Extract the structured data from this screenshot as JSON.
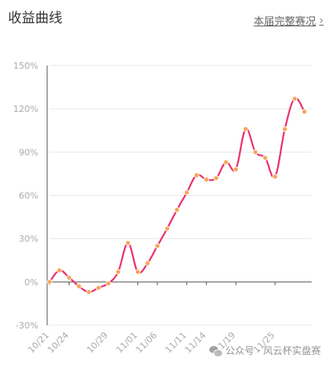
{
  "header": {
    "title": "收益曲线",
    "link_label": "本届完整赛况",
    "chevron": "›"
  },
  "watermark": {
    "text": "公众号 · 风云杯实盘赛",
    "icon": "wechat-icon"
  },
  "colors": {
    "line": "#e8336f",
    "marker": "#f6a55a",
    "axis_text": "#aaaaaa",
    "grid": "#e9e9e9",
    "axis": "#555555"
  },
  "chart_data": {
    "type": "line",
    "title": "",
    "xlabel": "",
    "ylabel": "",
    "ylim": [
      -30,
      150
    ],
    "yticks": [
      -30,
      0,
      30,
      60,
      90,
      120,
      150
    ],
    "ytick_labels": [
      "-30%",
      "0%",
      "30%",
      "60%",
      "90%",
      "120%",
      "150%"
    ],
    "xtick_labels": [
      "10/21",
      "10/24",
      "10/29",
      "11/01",
      "11/06",
      "11/11",
      "11/14",
      "11/19",
      "11/25"
    ],
    "xtick_indices": [
      0,
      2,
      6,
      9,
      11,
      14,
      16,
      19,
      23
    ],
    "grid": true,
    "series": [
      {
        "values": [
          0,
          8,
          3,
          -3,
          -7,
          -4,
          -1,
          7,
          27,
          7,
          13,
          25,
          37,
          50,
          62,
          74,
          71,
          72,
          83,
          78,
          106,
          90,
          86,
          73,
          106,
          127,
          118
        ]
      }
    ]
  }
}
